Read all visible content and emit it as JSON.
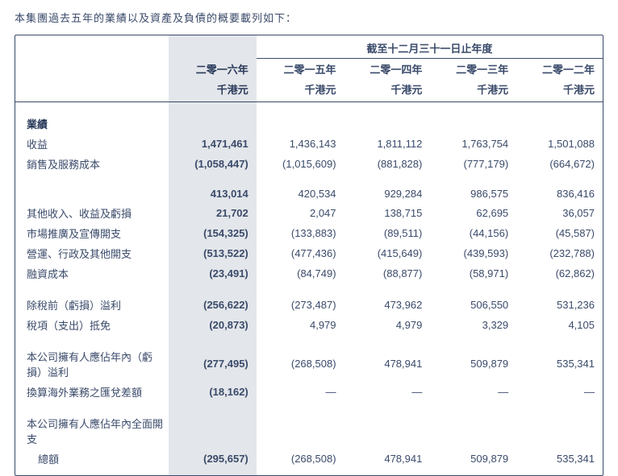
{
  "intro": "本集團過去五年的業績以及資產及負債的概要載列如下：",
  "table": {
    "period_header": "截至十二月三十一日止年度",
    "years": [
      "二零一六年",
      "二零一五年",
      "二零一四年",
      "二零一三年",
      "二零一二年"
    ],
    "unit": "千港元",
    "sections": {
      "perf_heading": "業績",
      "rows": [
        {
          "label": "收益",
          "v": [
            "1,471,461",
            "1,436,143",
            "1,811,112",
            "1,763,754",
            "1,501,088"
          ]
        },
        {
          "label": "銷售及服務成本",
          "v": [
            "(1,058,447)",
            "(1,015,609)",
            "(881,828)",
            "(777,179)",
            "(664,672)"
          ]
        }
      ],
      "subtotal1": {
        "v": [
          "413,014",
          "420,534",
          "929,284",
          "986,575",
          "836,416"
        ]
      },
      "rows2": [
        {
          "label": "其他收入、收益及虧損",
          "v": [
            "21,702",
            "2,047",
            "138,715",
            "62,695",
            "36,057"
          ]
        },
        {
          "label": "市場推廣及宣傳開支",
          "v": [
            "(154,325)",
            "(133,883)",
            "(89,511)",
            "(44,156)",
            "(45,587)"
          ]
        },
        {
          "label": "營運、行政及其他開支",
          "v": [
            "(513,522)",
            "(477,436)",
            "(415,649)",
            "(439,593)",
            "(232,788)"
          ]
        },
        {
          "label": "融資成本",
          "v": [
            "(23,491)",
            "(84,749)",
            "(88,877)",
            "(58,971)",
            "(62,862)"
          ]
        }
      ],
      "rows3": [
        {
          "label": "除稅前（虧損）溢利",
          "v": [
            "(256,622)",
            "(273,487)",
            "473,962",
            "506,550",
            "531,236"
          ]
        },
        {
          "label": "稅項（支出）抵免",
          "v": [
            "(20,873)",
            "4,979",
            "4,979",
            "3,329",
            "4,105"
          ]
        }
      ],
      "rows4": [
        {
          "label": "本公司擁有人應佔年內（虧損）溢利",
          "v": [
            "(277,495)",
            "(268,508)",
            "478,941",
            "509,879",
            "535,341"
          ]
        },
        {
          "label": "換算海外業務之匯兌差額",
          "v": [
            "(18,162)",
            "—",
            "—",
            "—",
            "—"
          ]
        }
      ],
      "rows5_label1": "本公司擁有人應佔年內全面開支",
      "rows5": {
        "label": "總額",
        "v": [
          "(295,657)",
          "(268,508)",
          "478,941",
          "509,879",
          "535,341"
        ]
      }
    }
  },
  "style": {
    "highlight_bg": "#e3e6ea",
    "border_color": "#3a4a6a",
    "text_color": "#3a4a6a"
  }
}
